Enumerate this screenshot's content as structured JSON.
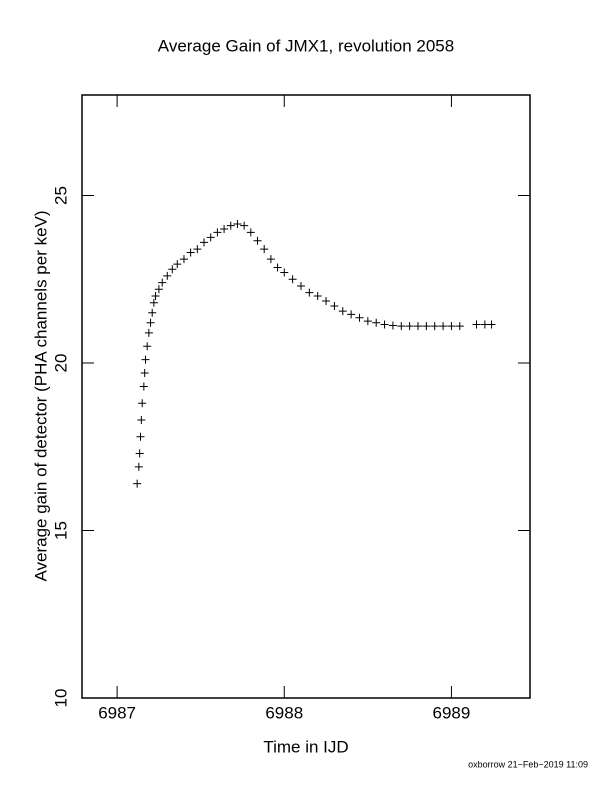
{
  "chart_data": {
    "type": "scatter",
    "title": "Average Gain of JMX1, revolution 2058",
    "x_label": "Time in IJD",
    "y_label": "Average gain of detector (PHA channels per keV)",
    "footer": "oxborrow 21−Feb−2019 11:09",
    "marker": "+",
    "color": "#000000",
    "x": [
      6987.12,
      6987.13,
      6987.135,
      6987.14,
      6987.145,
      6987.15,
      6987.16,
      6987.165,
      6987.17,
      6987.18,
      6987.19,
      6987.2,
      6987.21,
      6987.22,
      6987.23,
      6987.25,
      6987.27,
      6987.3,
      6987.33,
      6987.36,
      6987.4,
      6987.44,
      6987.48,
      6987.52,
      6987.56,
      6987.6,
      6987.64,
      6987.68,
      6987.72,
      6987.76,
      6987.8,
      6987.84,
      6987.88,
      6987.92,
      6987.96,
      6988.0,
      6988.05,
      6988.1,
      6988.15,
      6988.2,
      6988.25,
      6988.3,
      6988.35,
      6988.4,
      6988.45,
      6988.5,
      6988.55,
      6988.6,
      6988.65,
      6988.7,
      6988.75,
      6988.8,
      6988.85,
      6988.9,
      6988.95,
      6989.0,
      6989.05,
      6989.15,
      6989.2,
      6989.24
    ],
    "values": [
      16.4,
      16.9,
      17.3,
      17.8,
      18.3,
      18.8,
      19.3,
      19.7,
      20.1,
      20.5,
      20.9,
      21.2,
      21.5,
      21.8,
      22.0,
      22.2,
      22.4,
      22.6,
      22.8,
      22.95,
      23.1,
      23.3,
      23.4,
      23.6,
      23.75,
      23.9,
      24.0,
      24.1,
      24.15,
      24.1,
      23.9,
      23.65,
      23.4,
      23.1,
      22.85,
      22.7,
      22.5,
      22.3,
      22.1,
      22.0,
      21.85,
      21.7,
      21.55,
      21.45,
      21.35,
      21.25,
      21.2,
      21.15,
      21.12,
      21.1,
      21.1,
      21.1,
      21.1,
      21.1,
      21.1,
      21.1,
      21.1,
      21.15,
      21.15,
      21.15
    ],
    "xlim": [
      6986.79,
      6989.47
    ],
    "xticks": [
      6987,
      6988,
      6989
    ],
    "ylim": [
      10,
      28
    ],
    "yticks": [
      10,
      15,
      20,
      25
    ]
  }
}
